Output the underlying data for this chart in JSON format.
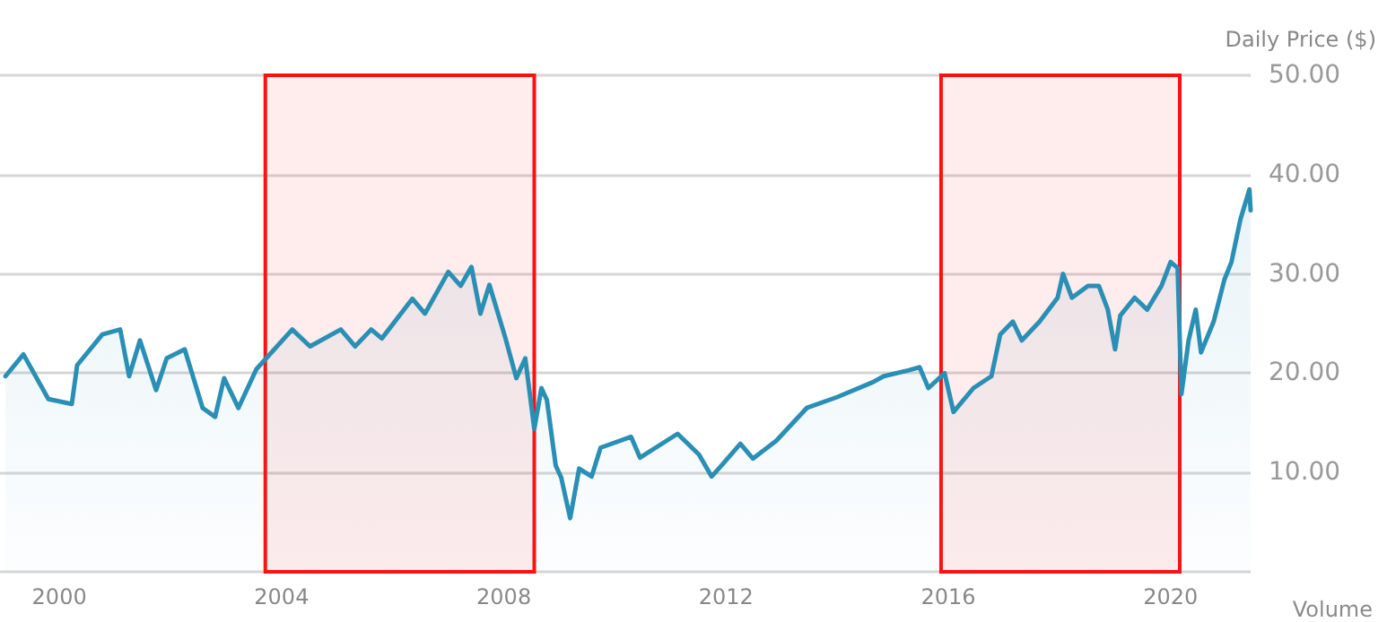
{
  "chart_data": {
    "type": "area",
    "ylabel": "Daily Price ($)",
    "annotations": [
      "Volume"
    ],
    "x": [
      "1999-01-12",
      "1999-05-10",
      "1999-10-21",
      "2000-03-23",
      "2000-04-27",
      "2000-10-10",
      "2001-02-04",
      "2001-04-04",
      "2001-06-14",
      "2001-09-28",
      "2001-12-07",
      "2002-04-04",
      "2002-07-31",
      "2002-10-21",
      "2002-12-19",
      "2003-03-23",
      "2003-07-19",
      "2004-03-11",
      "2004-07-06",
      "2005-01-24",
      "2005-04-28",
      "2005-08-12",
      "2005-10-21",
      "2006-05-10",
      "2006-07-31",
      "2007-01-01",
      "2007-03-23",
      "2007-06-02",
      "2007-07-31",
      "2007-09-28",
      "2008-01-12",
      "2008-03-23",
      "2008-05-21",
      "2008-07-19",
      "2008-09-04",
      "2008-10-10",
      "2008-12-07",
      "2009-01-12",
      "2009-03-12",
      "2009-05-10",
      "2009-07-31",
      "2009-09-28",
      "2010-04-16",
      "2010-06-14",
      "2011-02-16",
      "2011-07-07",
      "2011-09-28",
      "2011-12-07",
      "2012-04-04",
      "2012-06-25",
      "2012-11-26",
      "2013-06-14",
      "2014-01-01",
      "2014-08-23",
      "2014-11-02",
      "2015-04-16",
      "2015-06-26",
      "2015-08-23",
      "2015-12-07",
      "2016-02-04",
      "2016-06-14",
      "2016-10-10",
      "2016-12-07",
      "2017-02-28",
      "2017-04-28",
      "2017-08-23",
      "2017-12-19",
      "2018-01-24",
      "2018-03-23",
      "2018-07-07",
      "2018-09-16",
      "2018-11-14",
      "2019-01-01",
      "2019-02-04",
      "2019-05-10",
      "2019-07-31",
      "2019-11-02",
      "2020-01-01",
      "2020-02-16",
      "2020-03-12",
      "2020-04-28",
      "2020-06-14",
      "2020-07-19",
      "2020-10-10",
      "2020-12-19",
      "2021-02-04",
      "2021-04-04",
      "2021-06-02",
      "2021-06-10"
    ],
    "series": [
      {
        "color": "#2a8fb5",
        "values": [
          19.7,
          21.9,
          17.4,
          16.9,
          20.8,
          23.9,
          24.4,
          19.7,
          23.3,
          18.3,
          21.5,
          22.4,
          16.5,
          15.6,
          19.5,
          16.5,
          20.4,
          24.4,
          22.7,
          24.4,
          22.7,
          24.4,
          23.5,
          27.5,
          26,
          30.2,
          28.8,
          30.7,
          26,
          28.9,
          23.5,
          19.5,
          21.5,
          14.4,
          18.5,
          17.3,
          10.7,
          9.5,
          5.4,
          10.4,
          9.6,
          12.5,
          13.6,
          11.5,
          13.9,
          11.8,
          9.6,
          10.8,
          12.9,
          11.4,
          13.2,
          16.5,
          17.6,
          19.1,
          19.7,
          20.3,
          20.6,
          18.5,
          20,
          16.1,
          18.5,
          19.7,
          23.9,
          25.2,
          23.3,
          25.2,
          27.6,
          30,
          27.6,
          28.8,
          28.8,
          26.4,
          22.4,
          25.8,
          27.6,
          26.4,
          28.8,
          31.2,
          30.6,
          17.9,
          23.3,
          26.4,
          22.1,
          25.2,
          29.4,
          31.2,
          35.5,
          38.5,
          36.4
        ]
      }
    ],
    "xlim": [
      "1998-12-07",
      "2021-06-10"
    ],
    "xticks": [
      {
        "value": "2000",
        "label": "2000"
      },
      {
        "value": "2004",
        "label": "2004"
      },
      {
        "value": "2008",
        "label": "2008"
      },
      {
        "value": "2012",
        "label": "2012"
      },
      {
        "value": "2016",
        "label": "2016"
      },
      {
        "value": "2020",
        "label": "2020"
      }
    ],
    "ylim": [
      0,
      50
    ],
    "yticks": [
      {
        "value": 0,
        "label": null
      },
      {
        "value": 10,
        "label": "10.00"
      },
      {
        "value": 20,
        "label": "20.00"
      },
      {
        "value": 30,
        "label": "30.00"
      },
      {
        "value": 40,
        "label": "40.00"
      },
      {
        "value": 50,
        "label": "50.00"
      }
    ],
    "bands": [
      {
        "axis": "x",
        "from": "2003-09-16",
        "to": "2008-07-19",
        "color": "#ff1010"
      },
      {
        "axis": "x",
        "from": "2015-11-14",
        "to": "2020-03-01",
        "color": "#ff1010"
      }
    ],
    "grid": "y",
    "marker": "none",
    "line_style": "solid"
  }
}
